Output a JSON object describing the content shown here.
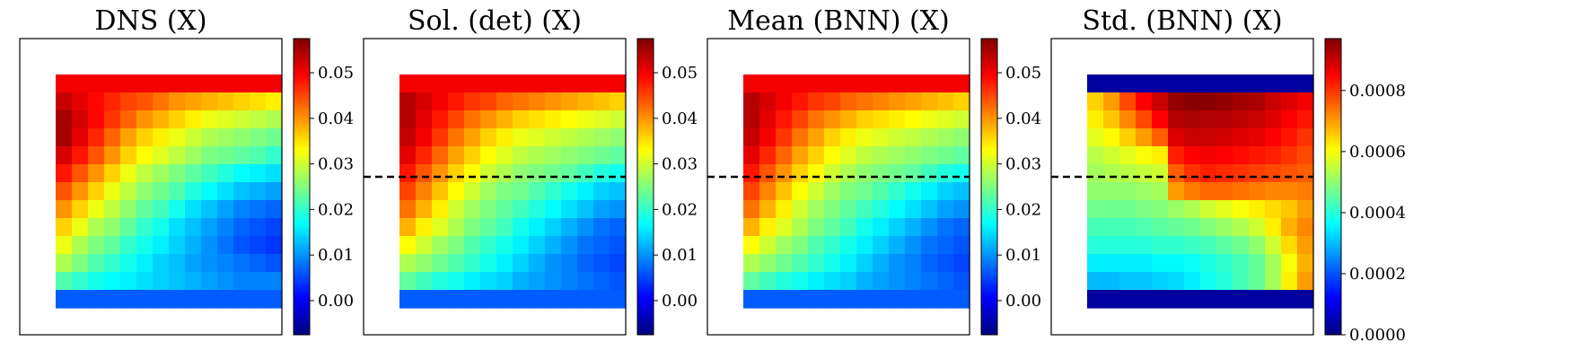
{
  "colors": {
    "colormap": [
      "#00007f",
      "#0000ff",
      "#007fff",
      "#00ffff",
      "#7fff7f",
      "#ffff00",
      "#ff7f00",
      "#ff0000",
      "#7f0000"
    ],
    "dashed_line": "#000000",
    "frame": "#000000"
  },
  "chart_data": [
    {
      "type": "heatmap",
      "title": "DNS (X)",
      "dashed_line": false,
      "colorbar": {
        "vmin": -0.0075,
        "vmax": 0.0575,
        "ticks": [
          0.0,
          0.01,
          0.02,
          0.03,
          0.04,
          0.05
        ],
        "tick_labels": [
          "0.00",
          "0.01",
          "0.02",
          "0.03",
          "0.04",
          "0.05"
        ]
      },
      "grid": [
        [
          0.05,
          0.05,
          0.05,
          0.05,
          0.05,
          0.05,
          0.05,
          0.05,
          0.05,
          0.05,
          0.05,
          0.05,
          0.05,
          0.05
        ],
        [
          0.053,
          0.051,
          0.049,
          0.047,
          0.045,
          0.044,
          0.042,
          0.04,
          0.039,
          0.038,
          0.037,
          0.036,
          0.035,
          0.034
        ],
        [
          0.055,
          0.052,
          0.049,
          0.046,
          0.043,
          0.04,
          0.038,
          0.036,
          0.034,
          0.032,
          0.031,
          0.03,
          0.029,
          0.028
        ],
        [
          0.055,
          0.051,
          0.047,
          0.043,
          0.039,
          0.036,
          0.034,
          0.032,
          0.03,
          0.028,
          0.027,
          0.026,
          0.025,
          0.024
        ],
        [
          0.052,
          0.048,
          0.044,
          0.04,
          0.036,
          0.033,
          0.031,
          0.029,
          0.027,
          0.025,
          0.024,
          0.023,
          0.022,
          0.02
        ],
        [
          0.048,
          0.044,
          0.04,
          0.036,
          0.032,
          0.029,
          0.027,
          0.025,
          0.023,
          0.021,
          0.019,
          0.017,
          0.016,
          0.015
        ],
        [
          0.044,
          0.04,
          0.036,
          0.032,
          0.029,
          0.026,
          0.024,
          0.022,
          0.019,
          0.017,
          0.015,
          0.013,
          0.012,
          0.011
        ],
        [
          0.04,
          0.036,
          0.032,
          0.029,
          0.026,
          0.023,
          0.021,
          0.018,
          0.015,
          0.013,
          0.011,
          0.009,
          0.008,
          0.007
        ],
        [
          0.036,
          0.032,
          0.028,
          0.026,
          0.023,
          0.02,
          0.018,
          0.015,
          0.013,
          0.011,
          0.009,
          0.007,
          0.006,
          0.005
        ],
        [
          0.032,
          0.028,
          0.025,
          0.023,
          0.02,
          0.018,
          0.016,
          0.014,
          0.012,
          0.01,
          0.008,
          0.006,
          0.005,
          0.004
        ],
        [
          0.028,
          0.025,
          0.022,
          0.02,
          0.018,
          0.016,
          0.014,
          0.013,
          0.011,
          0.01,
          0.009,
          0.008,
          0.007,
          0.006
        ],
        [
          0.022,
          0.02,
          0.018,
          0.017,
          0.016,
          0.015,
          0.014,
          0.013,
          0.012,
          0.011,
          0.01,
          0.009,
          0.009,
          0.009
        ],
        [
          0.0065,
          0.0065,
          0.0065,
          0.0065,
          0.0065,
          0.0065,
          0.0065,
          0.0065,
          0.0065,
          0.0065,
          0.0065,
          0.0065,
          0.0065,
          0.0065
        ]
      ]
    },
    {
      "type": "heatmap",
      "title": "Sol. (det) (X)",
      "dashed_line": true,
      "colorbar": {
        "vmin": -0.0075,
        "vmax": 0.0575,
        "ticks": [
          0.0,
          0.01,
          0.02,
          0.03,
          0.04,
          0.05
        ],
        "tick_labels": [
          "0.00",
          "0.01",
          "0.02",
          "0.03",
          "0.04",
          "0.05"
        ]
      },
      "grid": [
        [
          0.05,
          0.05,
          0.05,
          0.05,
          0.05,
          0.05,
          0.05,
          0.05,
          0.05,
          0.05,
          0.05,
          0.05,
          0.05,
          0.05
        ],
        [
          0.054,
          0.052,
          0.05,
          0.048,
          0.046,
          0.045,
          0.043,
          0.042,
          0.041,
          0.04,
          0.039,
          0.038,
          0.037,
          0.036
        ],
        [
          0.054,
          0.051,
          0.048,
          0.045,
          0.042,
          0.04,
          0.038,
          0.036,
          0.035,
          0.034,
          0.033,
          0.032,
          0.031,
          0.03
        ],
        [
          0.053,
          0.05,
          0.046,
          0.042,
          0.039,
          0.036,
          0.034,
          0.032,
          0.031,
          0.03,
          0.029,
          0.028,
          0.027,
          0.026
        ],
        [
          0.051,
          0.047,
          0.043,
          0.039,
          0.036,
          0.033,
          0.031,
          0.029,
          0.028,
          0.027,
          0.026,
          0.025,
          0.024,
          0.023
        ],
        [
          0.048,
          0.044,
          0.04,
          0.036,
          0.033,
          0.03,
          0.028,
          0.026,
          0.025,
          0.024,
          0.023,
          0.021,
          0.019,
          0.018
        ],
        [
          0.045,
          0.041,
          0.037,
          0.033,
          0.03,
          0.027,
          0.025,
          0.024,
          0.022,
          0.02,
          0.018,
          0.016,
          0.014,
          0.013
        ],
        [
          0.042,
          0.038,
          0.034,
          0.03,
          0.027,
          0.025,
          0.023,
          0.021,
          0.019,
          0.017,
          0.015,
          0.013,
          0.011,
          0.01
        ],
        [
          0.038,
          0.034,
          0.031,
          0.028,
          0.025,
          0.023,
          0.021,
          0.018,
          0.016,
          0.014,
          0.012,
          0.01,
          0.008,
          0.007
        ],
        [
          0.033,
          0.03,
          0.027,
          0.025,
          0.022,
          0.02,
          0.018,
          0.016,
          0.014,
          0.012,
          0.01,
          0.008,
          0.007,
          0.006
        ],
        [
          0.028,
          0.026,
          0.024,
          0.022,
          0.02,
          0.018,
          0.016,
          0.014,
          0.012,
          0.01,
          0.009,
          0.007,
          0.006,
          0.005
        ],
        [
          0.023,
          0.021,
          0.019,
          0.018,
          0.016,
          0.015,
          0.014,
          0.012,
          0.011,
          0.01,
          0.009,
          0.008,
          0.007,
          0.006
        ],
        [
          0.0065,
          0.0065,
          0.0065,
          0.0065,
          0.0065,
          0.0065,
          0.0065,
          0.0065,
          0.0065,
          0.0065,
          0.0065,
          0.0065,
          0.0065,
          0.0065
        ]
      ]
    },
    {
      "type": "heatmap",
      "title": "Mean (BNN) (X)",
      "dashed_line": true,
      "colorbar": {
        "vmin": -0.0075,
        "vmax": 0.0575,
        "ticks": [
          0.0,
          0.01,
          0.02,
          0.03,
          0.04,
          0.05
        ],
        "tick_labels": [
          "0.00",
          "0.01",
          "0.02",
          "0.03",
          "0.04",
          "0.05"
        ]
      },
      "grid": [
        [
          0.05,
          0.05,
          0.05,
          0.05,
          0.05,
          0.05,
          0.05,
          0.05,
          0.05,
          0.05,
          0.05,
          0.05,
          0.05,
          0.05
        ],
        [
          0.054,
          0.052,
          0.05,
          0.048,
          0.046,
          0.045,
          0.043,
          0.042,
          0.041,
          0.04,
          0.039,
          0.038,
          0.037,
          0.036
        ],
        [
          0.054,
          0.051,
          0.048,
          0.045,
          0.042,
          0.04,
          0.038,
          0.036,
          0.035,
          0.034,
          0.033,
          0.032,
          0.031,
          0.03
        ],
        [
          0.053,
          0.05,
          0.046,
          0.042,
          0.039,
          0.036,
          0.034,
          0.032,
          0.031,
          0.03,
          0.029,
          0.028,
          0.027,
          0.026
        ],
        [
          0.051,
          0.047,
          0.043,
          0.039,
          0.036,
          0.033,
          0.031,
          0.029,
          0.028,
          0.027,
          0.026,
          0.025,
          0.024,
          0.023
        ],
        [
          0.048,
          0.044,
          0.04,
          0.036,
          0.033,
          0.03,
          0.028,
          0.026,
          0.025,
          0.024,
          0.023,
          0.021,
          0.019,
          0.018
        ],
        [
          0.045,
          0.041,
          0.037,
          0.033,
          0.03,
          0.027,
          0.025,
          0.024,
          0.022,
          0.02,
          0.018,
          0.016,
          0.014,
          0.013
        ],
        [
          0.042,
          0.038,
          0.034,
          0.03,
          0.027,
          0.025,
          0.023,
          0.021,
          0.019,
          0.017,
          0.015,
          0.013,
          0.011,
          0.01
        ],
        [
          0.038,
          0.034,
          0.031,
          0.028,
          0.025,
          0.023,
          0.021,
          0.018,
          0.016,
          0.014,
          0.012,
          0.01,
          0.008,
          0.007
        ],
        [
          0.033,
          0.03,
          0.027,
          0.025,
          0.022,
          0.02,
          0.018,
          0.016,
          0.014,
          0.012,
          0.01,
          0.008,
          0.007,
          0.006
        ],
        [
          0.028,
          0.026,
          0.024,
          0.022,
          0.02,
          0.018,
          0.016,
          0.014,
          0.012,
          0.01,
          0.009,
          0.007,
          0.006,
          0.005
        ],
        [
          0.023,
          0.021,
          0.019,
          0.018,
          0.016,
          0.015,
          0.014,
          0.012,
          0.011,
          0.01,
          0.009,
          0.008,
          0.007,
          0.006
        ],
        [
          0.0065,
          0.0065,
          0.0065,
          0.0065,
          0.0065,
          0.0065,
          0.0065,
          0.0065,
          0.0065,
          0.0065,
          0.0065,
          0.0065,
          0.0065,
          0.0065
        ]
      ]
    },
    {
      "type": "heatmap",
      "title": "Std. (BNN) (X)",
      "dashed_line": true,
      "colorbar": {
        "vmin": 0.0,
        "vmax": 0.00097,
        "ticks": [
          0.0,
          0.0002,
          0.0004,
          0.0006,
          0.0008
        ],
        "tick_labels": [
          "0.0000",
          "0.0002",
          "0.0004",
          "0.0006",
          "0.0008"
        ]
      },
      "grid": [
        [
          3e-05,
          3e-05,
          3e-05,
          3e-05,
          3e-05,
          3e-05,
          3e-05,
          3e-05,
          3e-05,
          3e-05,
          3e-05,
          3e-05,
          3e-05,
          3e-05
        ],
        [
          0.00065,
          0.0007,
          0.00078,
          0.00085,
          0.0009,
          0.00095,
          0.00096,
          0.00096,
          0.00095,
          0.00094,
          0.00093,
          0.0009,
          0.00088,
          0.00086
        ],
        [
          0.00062,
          0.00066,
          0.00072,
          0.00078,
          0.00085,
          0.00092,
          0.00093,
          0.00092,
          0.00092,
          0.00091,
          0.0009,
          0.00088,
          0.00085,
          0.00083
        ],
        [
          0.00058,
          0.00061,
          0.00065,
          0.0007,
          0.00076,
          0.00088,
          0.0009,
          0.0009,
          0.00089,
          0.00088,
          0.00087,
          0.00085,
          0.00083,
          0.0008
        ],
        [
          0.00054,
          0.00056,
          0.00058,
          0.0006,
          0.00062,
          0.00082,
          0.00085,
          0.00086,
          0.00085,
          0.00084,
          0.00083,
          0.00082,
          0.0008,
          0.00078
        ],
        [
          0.00052,
          0.00053,
          0.00054,
          0.00055,
          0.00056,
          0.00076,
          0.0008,
          0.00082,
          0.00081,
          0.0008,
          0.00079,
          0.00078,
          0.00077,
          0.00076
        ],
        [
          0.0005,
          0.0005,
          0.0005,
          0.00051,
          0.00052,
          0.0007,
          0.00073,
          0.00075,
          0.00075,
          0.00074,
          0.00073,
          0.00072,
          0.00072,
          0.00073
        ],
        [
          0.00047,
          0.00047,
          0.00047,
          0.00048,
          0.00049,
          0.00051,
          0.00053,
          0.00056,
          0.00058,
          0.0006,
          0.00062,
          0.00064,
          0.00066,
          0.0007
        ],
        [
          0.00043,
          0.00043,
          0.00043,
          0.00044,
          0.00045,
          0.00046,
          0.00047,
          0.00049,
          0.00051,
          0.00053,
          0.00056,
          0.00062,
          0.00068,
          0.00072
        ],
        [
          0.0004,
          0.0004,
          0.0004,
          0.0004,
          0.00041,
          0.00041,
          0.00042,
          0.00043,
          0.00045,
          0.00047,
          0.0005,
          0.00056,
          0.00064,
          0.0007
        ],
        [
          0.00035,
          0.00035,
          0.00035,
          0.00035,
          0.00036,
          0.00036,
          0.00037,
          0.00039,
          0.00041,
          0.00043,
          0.00046,
          0.00052,
          0.0006,
          0.00068
        ],
        [
          0.0003,
          0.0003,
          0.00031,
          0.00031,
          0.00032,
          0.00033,
          0.00035,
          0.00038,
          0.0004,
          0.00043,
          0.00046,
          0.00052,
          0.00062,
          0.0007
        ],
        [
          3e-05,
          3e-05,
          3e-05,
          3e-05,
          3e-05,
          3e-05,
          3e-05,
          3e-05,
          3e-05,
          3e-05,
          3e-05,
          3e-05,
          3e-05,
          3e-05
        ]
      ]
    }
  ]
}
